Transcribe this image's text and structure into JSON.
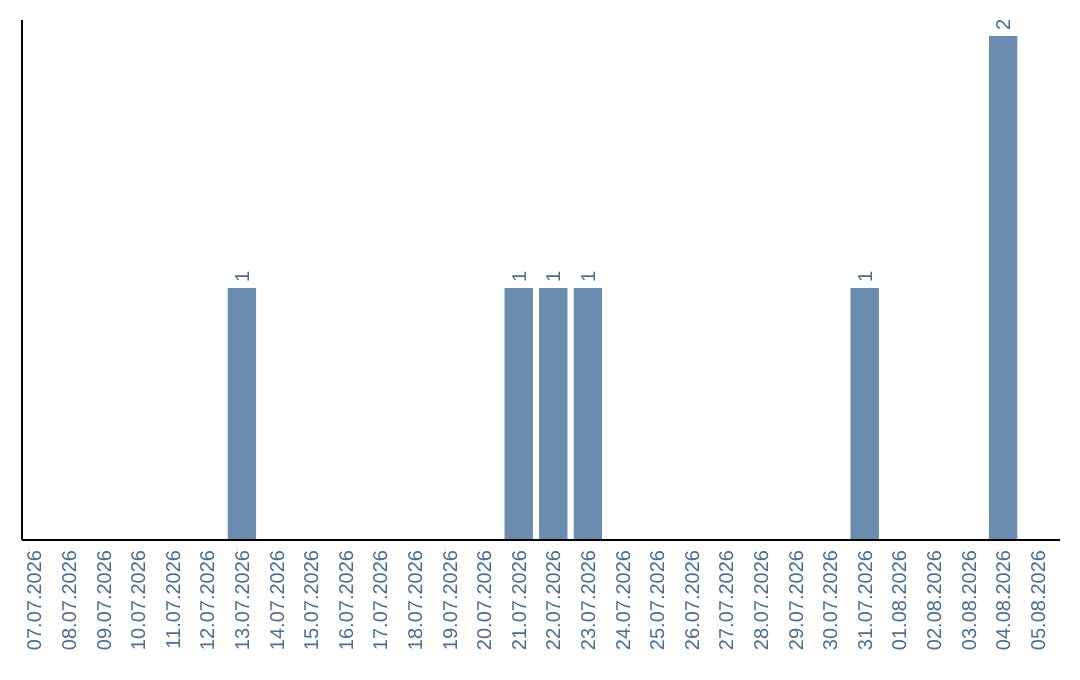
{
  "chart_data": {
    "type": "bar",
    "categories": [
      "07.07.2026",
      "08.07.2026",
      "09.07.2026",
      "10.07.2026",
      "11.07.2026",
      "12.07.2026",
      "13.07.2026",
      "14.07.2026",
      "15.07.2026",
      "16.07.2026",
      "17.07.2026",
      "18.07.2026",
      "19.07.2026",
      "20.07.2026",
      "21.07.2026",
      "22.07.2026",
      "23.07.2026",
      "24.07.2026",
      "25.07.2026",
      "26.07.2026",
      "27.07.2026",
      "28.07.2026",
      "29.07.2026",
      "30.07.2026",
      "31.07.2026",
      "01.08.2026",
      "02.08.2026",
      "03.08.2026",
      "04.08.2026",
      "05.08.2026"
    ],
    "values": [
      0,
      0,
      0,
      0,
      0,
      0,
      1,
      0,
      0,
      0,
      0,
      0,
      0,
      0,
      1,
      1,
      1,
      0,
      0,
      0,
      0,
      0,
      0,
      0,
      1,
      0,
      0,
      0,
      2,
      0
    ],
    "value_labels": [
      null,
      null,
      null,
      null,
      null,
      null,
      "1",
      null,
      null,
      null,
      null,
      null,
      null,
      null,
      "1",
      "1",
      "1",
      null,
      null,
      null,
      null,
      null,
      null,
      null,
      "1",
      null,
      null,
      null,
      "2",
      null
    ],
    "color": "#6a8caf"
  }
}
